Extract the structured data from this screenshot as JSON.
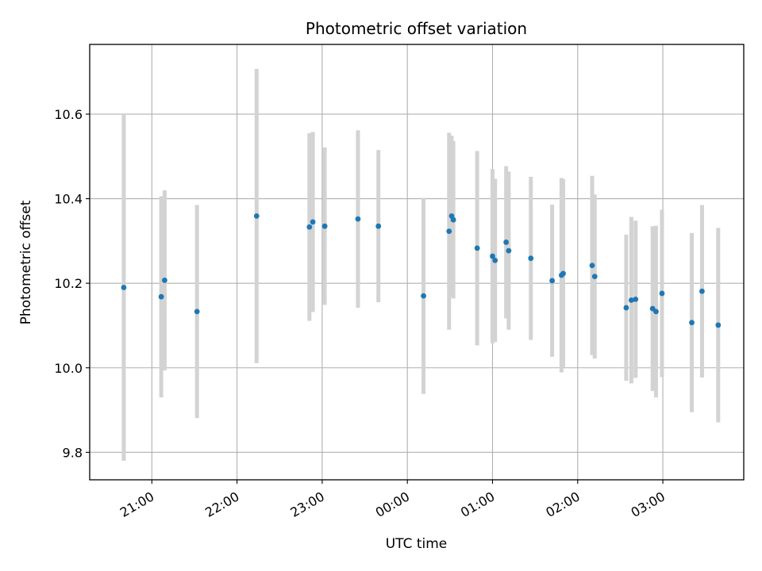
{
  "chart_data": {
    "type": "scatter",
    "title": "Photometric offset variation",
    "xlabel": "UTC time",
    "ylabel": "Photometric offset",
    "x_unit": "hours",
    "xlim": [
      20.27,
      27.95
    ],
    "ylim": [
      9.735,
      10.765
    ],
    "grid": true,
    "point_color": "#1f77b4",
    "errorbar_color": "#d3d3d3",
    "x_ticks": [
      {
        "value": 21,
        "label": "21:00"
      },
      {
        "value": 22,
        "label": "22:00"
      },
      {
        "value": 23,
        "label": "23:00"
      },
      {
        "value": 24,
        "label": "00:00"
      },
      {
        "value": 25,
        "label": "01:00"
      },
      {
        "value": 26,
        "label": "02:00"
      },
      {
        "value": 27,
        "label": "03:00"
      }
    ],
    "y_ticks": [
      {
        "value": 9.8,
        "label": "9.8"
      },
      {
        "value": 10.0,
        "label": "10.0"
      },
      {
        "value": 10.2,
        "label": "10.2"
      },
      {
        "value": 10.4,
        "label": "10.4"
      },
      {
        "value": 10.6,
        "label": "10.6"
      }
    ],
    "points": [
      {
        "x": 20.67,
        "y": 10.19,
        "yerr": 0.41
      },
      {
        "x": 21.11,
        "y": 10.168,
        "yerr": 0.238
      },
      {
        "x": 21.15,
        "y": 10.207,
        "yerr": 0.213
      },
      {
        "x": 21.53,
        "y": 10.133,
        "yerr": 0.252
      },
      {
        "x": 22.23,
        "y": 10.359,
        "yerr": 0.348
      },
      {
        "x": 22.85,
        "y": 10.333,
        "yerr": 0.222
      },
      {
        "x": 22.89,
        "y": 10.345,
        "yerr": 0.213
      },
      {
        "x": 23.03,
        "y": 10.335,
        "yerr": 0.186
      },
      {
        "x": 23.42,
        "y": 10.352,
        "yerr": 0.21
      },
      {
        "x": 23.66,
        "y": 10.335,
        "yerr": 0.18
      },
      {
        "x": 24.19,
        "y": 10.17,
        "yerr": 0.232
      },
      {
        "x": 24.49,
        "y": 10.323,
        "yerr": 0.233
      },
      {
        "x": 24.52,
        "y": 10.359,
        "yerr": 0.19
      },
      {
        "x": 24.54,
        "y": 10.35,
        "yerr": 0.186
      },
      {
        "x": 24.82,
        "y": 10.283,
        "yerr": 0.23
      },
      {
        "x": 25.0,
        "y": 10.264,
        "yerr": 0.206
      },
      {
        "x": 25.03,
        "y": 10.254,
        "yerr": 0.193
      },
      {
        "x": 25.16,
        "y": 10.297,
        "yerr": 0.18
      },
      {
        "x": 25.19,
        "y": 10.277,
        "yerr": 0.187
      },
      {
        "x": 25.45,
        "y": 10.259,
        "yerr": 0.193
      },
      {
        "x": 25.7,
        "y": 10.206,
        "yerr": 0.18
      },
      {
        "x": 25.81,
        "y": 10.219,
        "yerr": 0.23
      },
      {
        "x": 25.83,
        "y": 10.223,
        "yerr": 0.223
      },
      {
        "x": 26.17,
        "y": 10.242,
        "yerr": 0.212
      },
      {
        "x": 26.2,
        "y": 10.216,
        "yerr": 0.194
      },
      {
        "x": 26.57,
        "y": 10.142,
        "yerr": 0.173
      },
      {
        "x": 26.63,
        "y": 10.16,
        "yerr": 0.197
      },
      {
        "x": 26.68,
        "y": 10.162,
        "yerr": 0.186
      },
      {
        "x": 26.88,
        "y": 10.14,
        "yerr": 0.195
      },
      {
        "x": 26.92,
        "y": 10.133,
        "yerr": 0.203
      },
      {
        "x": 26.99,
        "y": 10.176,
        "yerr": 0.198
      },
      {
        "x": 27.34,
        "y": 10.107,
        "yerr": 0.212
      },
      {
        "x": 27.46,
        "y": 10.181,
        "yerr": 0.204
      },
      {
        "x": 27.65,
        "y": 10.101,
        "yerr": 0.23
      }
    ]
  }
}
